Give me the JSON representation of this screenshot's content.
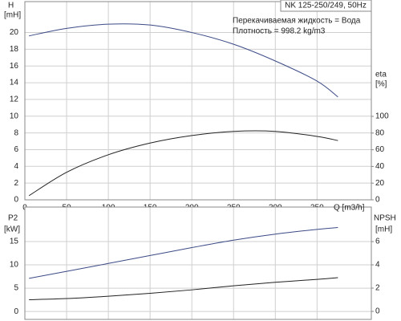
{
  "chart_data": [
    {
      "type": "line",
      "ylabel": "H",
      "yunit": "[mH]",
      "y2label": "eta",
      "y2unit": "[%]",
      "xlabel": "Q [m3/h]",
      "annotations": [
        "NK 125-250/249, 50Hz",
        "Перекачиваемая жидкость = Вода",
        "Плотность = 998.2 kg/m3"
      ],
      "x": [
        5,
        50,
        100,
        150,
        200,
        250,
        300,
        350,
        375
      ],
      "series": [
        {
          "color": "#3b4a86",
          "values": [
            19.6,
            20.5,
            21.0,
            20.9,
            20.0,
            18.6,
            16.6,
            14.2,
            12.3
          ]
        },
        {
          "color": "#222222",
          "axis": "y2",
          "values": [
            5,
            33,
            54,
            68,
            77,
            82,
            82,
            76,
            71
          ]
        }
      ],
      "xlim": [
        0,
        415
      ],
      "xticks": [
        0,
        50,
        100,
        150,
        200,
        250,
        300,
        350
      ],
      "ylim": [
        0,
        23.7
      ],
      "yticks": [
        0,
        2,
        4,
        6,
        8,
        10,
        12,
        14,
        16,
        18,
        20
      ],
      "y2lim": [
        0,
        237.5
      ],
      "y2ticks": [
        0,
        20,
        40,
        60,
        80,
        100
      ],
      "grid": true
    },
    {
      "type": "line",
      "ylabel": "P2",
      "yunit": "[kW]",
      "y2label": "NPSH",
      "y2unit": "[mH]",
      "x": [
        5,
        50,
        100,
        150,
        200,
        250,
        300,
        350,
        375
      ],
      "series": [
        {
          "color": "#3b4a86",
          "values": [
            7.1,
            8.6,
            10.3,
            12.0,
            13.7,
            15.3,
            16.6,
            17.6,
            18.0
          ]
        },
        {
          "color": "#222222",
          "axis": "y2",
          "values": [
            1.0,
            1.1,
            1.3,
            1.55,
            1.85,
            2.2,
            2.5,
            2.75,
            2.9
          ]
        }
      ],
      "xlim": [
        0,
        415
      ],
      "xticks": [
        0,
        50,
        100,
        150,
        200,
        250,
        300,
        350
      ],
      "ylim": [
        -1.7,
        22.4
      ],
      "yticks": [
        0,
        5,
        10,
        15
      ],
      "y2lim": [
        -0.69,
        8.97
      ],
      "y2ticks": [
        0,
        2,
        4,
        6
      ],
      "grid": true,
      "xtick_labels": false
    }
  ]
}
